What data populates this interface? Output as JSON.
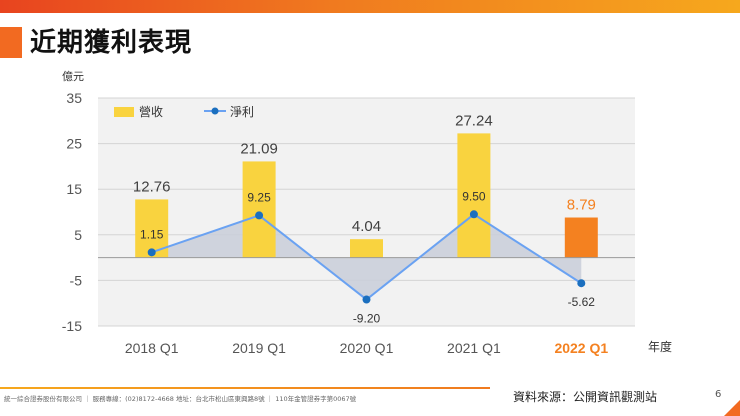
{
  "page": {
    "title": "近期獲利表現",
    "y_unit": "億元",
    "x_unit": "年度",
    "source": "資料來源：公開資訊觀測站",
    "page_number": "6",
    "footer": "統一綜合證券股份有限公司 ｜ 服務專線：(02)8172-4668 地址：台北市松山區東興路8號 ｜ 110年金管證券字第0067號"
  },
  "chart_data": {
    "type": "bar",
    "categories": [
      "2018 Q1",
      "2019 Q1",
      "2020 Q1",
      "2021 Q1",
      "2022 Q1"
    ],
    "series": [
      {
        "name": "營收",
        "type": "bar",
        "values": [
          12.76,
          21.09,
          4.04,
          27.24,
          8.79
        ]
      },
      {
        "name": "淨利",
        "type": "line",
        "values": [
          1.15,
          9.25,
          -9.2,
          9.5,
          -5.62
        ]
      }
    ],
    "value_labels": {
      "revenue": [
        "12.76",
        "21.09",
        "4.04",
        "27.24",
        "8.79"
      ],
      "profit": [
        "1.15",
        "9.25",
        "-9.20",
        "9.50",
        "-5.62"
      ]
    },
    "y_ticks": [
      35,
      25,
      15,
      5,
      -5,
      -15
    ],
    "y_tick_labels": [
      "35",
      "25",
      "15",
      "5",
      "-5",
      "-15"
    ],
    "ylim": [
      -15,
      35
    ],
    "colors": {
      "bar": "#f9d33f",
      "bar_highlight": "#f48120",
      "line": "#6aa2f2",
      "marker": "#1b6fbf",
      "area": "#c9ced9",
      "highlight_label": "#f48120"
    },
    "highlight_index": 4,
    "legend": "top-left",
    "grid": true
  }
}
